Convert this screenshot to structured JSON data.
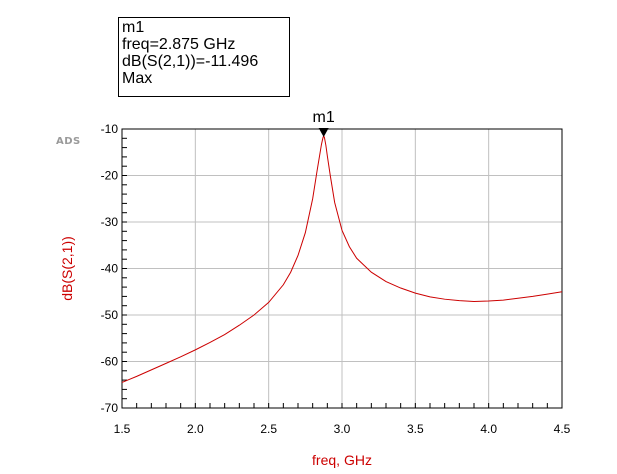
{
  "marker_box": {
    "name": "m1",
    "freq_line": "freq=2.875 GHz",
    "value_line": "dB(S(2,1))=-11.496",
    "type_line": "Max"
  },
  "logo": "ADS",
  "marker_label": "m1",
  "colors": {
    "trace": "#cc0000",
    "axis_label": "#cc0000",
    "grid": "#c0c0c0",
    "frame": "#000000"
  },
  "chart_data": {
    "type": "line",
    "title": "",
    "xlabel": "freq, GHz",
    "ylabel": "dB(S(2,1))",
    "xlim": [
      1.5,
      4.5
    ],
    "ylim": [
      -70,
      -10
    ],
    "x_ticks": [
      "1.5",
      "2.0",
      "2.5",
      "3.0",
      "3.5",
      "4.0",
      "4.5"
    ],
    "y_ticks": [
      "-10",
      "-20",
      "-30",
      "-40",
      "-50",
      "-60",
      "-70"
    ],
    "grid": true,
    "series": [
      {
        "x": [
          1.5,
          1.6,
          1.7,
          1.8,
          1.9,
          2.0,
          2.1,
          2.2,
          2.3,
          2.4,
          2.5,
          2.6,
          2.65,
          2.7,
          2.75,
          2.8,
          2.83,
          2.85,
          2.86,
          2.87,
          2.875,
          2.88,
          2.89,
          2.9,
          2.92,
          2.95,
          3.0,
          3.05,
          3.1,
          3.2,
          3.3,
          3.4,
          3.5,
          3.6,
          3.7,
          3.8,
          3.9,
          4.0,
          4.1,
          4.2,
          4.3,
          4.4,
          4.5
        ],
        "y": [
          -64.5,
          -63.2,
          -61.8,
          -60.4,
          -59.0,
          -57.5,
          -55.9,
          -54.2,
          -52.2,
          -50.0,
          -47.3,
          -43.5,
          -40.8,
          -37.2,
          -32.3,
          -25.0,
          -19.0,
          -15.2,
          -13.3,
          -11.9,
          -11.496,
          -11.8,
          -13.5,
          -15.8,
          -20.0,
          -25.8,
          -31.8,
          -35.3,
          -37.8,
          -40.8,
          -42.8,
          -44.2,
          -45.3,
          -46.1,
          -46.6,
          -46.9,
          -47.1,
          -47.0,
          -46.8,
          -46.4,
          -46.0,
          -45.5,
          -45.0
        ]
      }
    ]
  }
}
